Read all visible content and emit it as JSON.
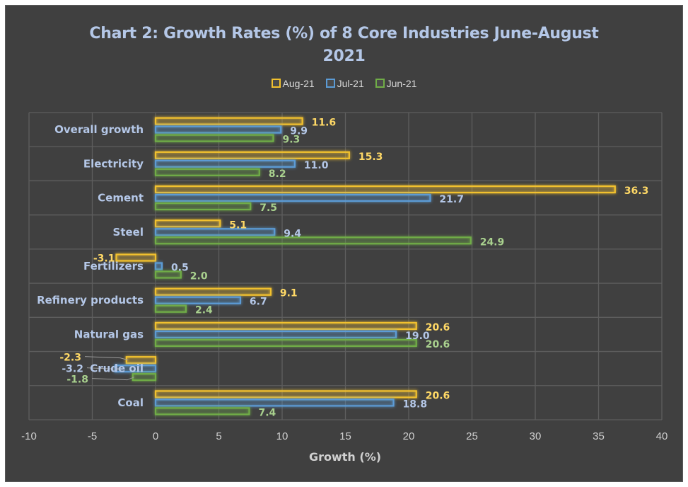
{
  "chart_data": {
    "type": "bar",
    "orientation": "horizontal",
    "title": "Chart 2: Growth Rates (%) of 8 Core Industries  June-August 2021",
    "title_lines": [
      "Chart 2: Growth Rates (%) of 8 Core Industries  June-August",
      "2021"
    ],
    "xlabel": "Growth  (%)",
    "ylabel": "",
    "xlim": [
      -10,
      40
    ],
    "xticks": [
      -10,
      -5,
      0,
      5,
      10,
      15,
      20,
      25,
      30,
      35,
      40
    ],
    "grid": true,
    "legend_position": "top",
    "categories": [
      "Overall growth",
      "Electricity",
      "Cement",
      "Steel",
      "Fertilizers",
      "Refinery products",
      "Natural gas",
      "Crude oil",
      "Coal"
    ],
    "series": [
      {
        "name": "Aug-21",
        "color": "#f2c12e",
        "label_color": "#ffd966",
        "values": [
          11.6,
          15.3,
          36.3,
          5.1,
          -3.1,
          9.1,
          20.6,
          -2.3,
          20.6
        ]
      },
      {
        "name": "Jul-21",
        "color": "#5b9bd5",
        "label_color": "#b4c7e7",
        "values": [
          9.9,
          11.0,
          21.7,
          9.4,
          0.5,
          6.7,
          19.0,
          -3.2,
          18.8
        ]
      },
      {
        "name": "Jun-21",
        "color": "#70ad47",
        "label_color": "#a9d18e",
        "values": [
          9.3,
          8.2,
          7.5,
          24.9,
          2.0,
          2.4,
          20.6,
          -1.8,
          7.4
        ]
      }
    ],
    "value_labels": [
      [
        "11.6",
        "15.3",
        "36.3",
        "5.1",
        "-3.1",
        "9.1",
        "20.6",
        "-2.3",
        "20.6"
      ],
      [
        "9.9",
        "11.0",
        "21.7",
        "9.4",
        "0.5",
        "6.7",
        "19.0",
        "-3.2",
        "18.8"
      ],
      [
        "9.3",
        "8.2",
        "7.5",
        "24.9",
        "2.0",
        "2.4",
        "20.6",
        "-1.8",
        "7.4"
      ]
    ],
    "colors": {
      "background": "#404040",
      "grid": "#5e5e5e",
      "title": "#b4c7e7"
    }
  }
}
